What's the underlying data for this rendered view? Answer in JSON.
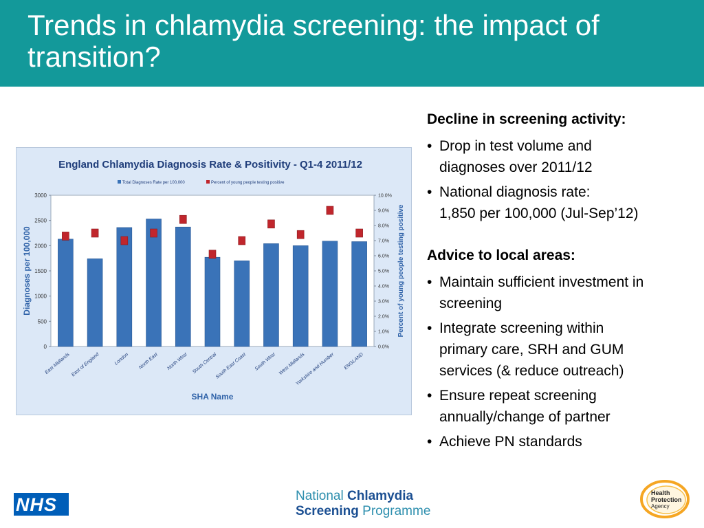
{
  "slide": {
    "title": "Trends in chlamydia screening: the impact of transition?"
  },
  "chart_data": {
    "type": "bar",
    "title": "England Chlamydia Diagnosis Rate & Positivity - Q1-4 2011/12",
    "xlabel": "SHA Name",
    "ylabel": "Diagnoses per 100,000",
    "y2label": "Percent of young people testing positive",
    "ylim": [
      0,
      3000
    ],
    "y2lim": [
      0,
      10
    ],
    "yticks": [
      "0",
      "500",
      "1000",
      "1500",
      "2000",
      "2500",
      "3000"
    ],
    "y2ticks": [
      "0.0%",
      "1.0%",
      "2.0%",
      "3.0%",
      "4.0%",
      "5.0%",
      "6.0%",
      "7.0%",
      "8.0%",
      "9.0%",
      "10.0%"
    ],
    "categories": [
      "East Midlands",
      "East of England",
      "London",
      "North East",
      "North West",
      "South Central",
      "South East Coast",
      "South West",
      "West Midlands",
      "Yorkshire and Humber",
      "ENGLAND"
    ],
    "series": [
      {
        "name": "Total Diagnoses Rate per 100,000",
        "axis": "left",
        "kind": "bar",
        "color": "#3a73b8",
        "values": [
          2130,
          1740,
          2360,
          2530,
          2370,
          1770,
          1700,
          2040,
          2000,
          2090,
          2080
        ]
      },
      {
        "name": "Percent of young people testing positive",
        "axis": "right",
        "kind": "marker",
        "color": "#c0262c",
        "values": [
          7.3,
          7.5,
          7.0,
          7.5,
          8.4,
          6.1,
          7.0,
          8.1,
          7.4,
          9.0,
          7.5
        ]
      }
    ],
    "legend": "top",
    "grid": false,
    "background": "#dce8f7"
  },
  "sections": [
    {
      "heading": "Decline in screening activity:",
      "bullets": [
        [
          "Drop in test volume and",
          "diagnoses over 2011/12"
        ],
        [
          "National diagnosis rate:",
          "1,850 per 100,000 (Jul-Sep’12)"
        ]
      ]
    },
    {
      "heading": "Advice to local areas:",
      "bullets": [
        [
          "Maintain sufficient investment in",
          "screening"
        ],
        [
          "Integrate screening within",
          "primary care, SRH and GUM",
          "services (& reduce outreach)"
        ],
        [
          "Ensure repeat screening",
          "annually/change of partner"
        ],
        [
          "Achieve PN standards"
        ]
      ]
    }
  ],
  "footer": {
    "nhs_logo": "NHS",
    "ncsp_national": "National",
    "ncsp_chlamydia": "Chlamydia",
    "ncsp_screening": "Screening",
    "ncsp_programme": "Programme",
    "hpa_line1": "Health",
    "hpa_line2": "Protection",
    "hpa_line3": "Agency",
    "hpa_color": "#f5a623"
  }
}
